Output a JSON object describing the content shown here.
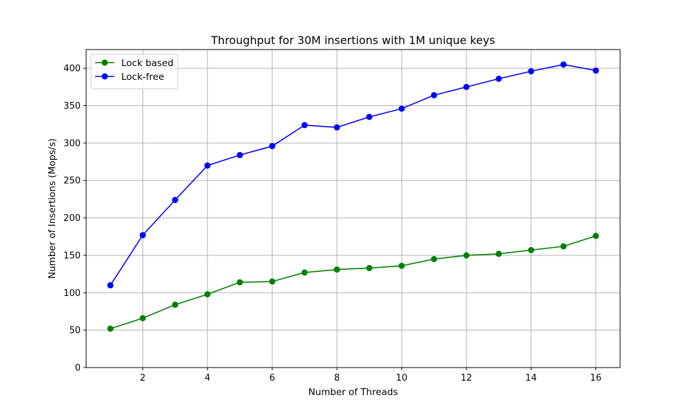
{
  "chart_data": {
    "type": "line",
    "title": "Throughput for 30M insertions with 1M unique keys",
    "xlabel": "Number of Threads",
    "ylabel": "Number of Insertions (Mops/s)",
    "x": [
      1,
      2,
      3,
      4,
      5,
      6,
      7,
      8,
      9,
      10,
      11,
      12,
      13,
      14,
      15,
      16
    ],
    "xlim": [
      0.25,
      16.75
    ],
    "ylim": [
      0,
      425
    ],
    "xticks": [
      2,
      4,
      6,
      8,
      10,
      12,
      14,
      16
    ],
    "yticks": [
      0,
      50,
      100,
      150,
      200,
      250,
      300,
      350,
      400
    ],
    "grid": true,
    "legend_position": "top-left",
    "series": [
      {
        "name": "Lock based",
        "color": "#008000",
        "marker": "circle",
        "values": [
          52,
          66,
          84,
          98,
          114,
          115,
          127,
          131,
          133,
          136,
          145,
          150,
          152,
          157,
          162,
          176
        ]
      },
      {
        "name": "Lock-free",
        "color": "#0000ff",
        "marker": "circle",
        "values": [
          110,
          177,
          224,
          270,
          284,
          296,
          324,
          321,
          335,
          346,
          364,
          375,
          386,
          396,
          405,
          397
        ]
      }
    ]
  }
}
